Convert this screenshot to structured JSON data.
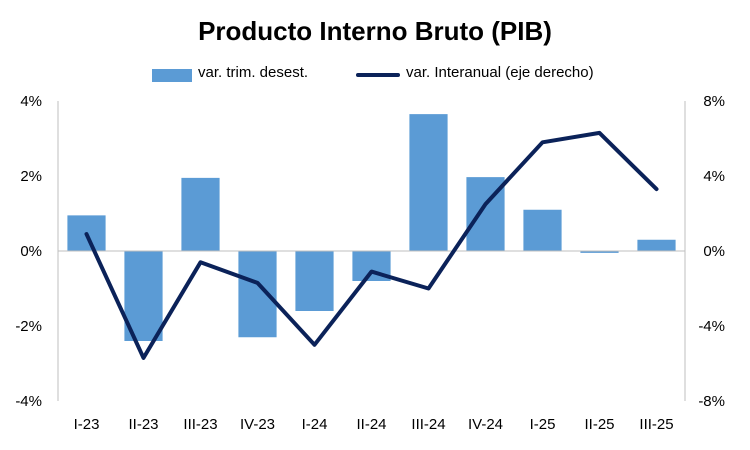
{
  "chart_data": {
    "type": "bar",
    "title": "Producto Interno Bruto (PIB)",
    "categories": [
      "I-23",
      "II-23",
      "III-23",
      "IV-23",
      "I-24",
      "II-24",
      "III-24",
      "IV-24",
      "I-25",
      "II-25",
      "III-25"
    ],
    "series": [
      {
        "name": "var. trim. desest.",
        "type": "bar",
        "axis": "left",
        "color": "#5b9bd5",
        "values": [
          0.95,
          -2.4,
          1.95,
          -2.3,
          -1.6,
          -0.8,
          3.65,
          1.97,
          1.1,
          -0.05,
          0.3
        ]
      },
      {
        "name": "var. Interanual (eje derecho)",
        "type": "line",
        "axis": "right",
        "color": "#0b2259",
        "values": [
          0.9,
          -5.7,
          -0.6,
          -1.7,
          -5.0,
          -1.1,
          -2.0,
          2.5,
          5.8,
          6.3,
          3.3
        ]
      }
    ],
    "y_left": {
      "min": -4,
      "max": 4,
      "ticks": [
        "4%",
        "2%",
        "0%",
        "-2%",
        "-4%"
      ]
    },
    "y_right": {
      "min": -8,
      "max": 8,
      "ticks": [
        "8%",
        "4%",
        "0%",
        "-4%",
        "-8%"
      ]
    },
    "grid": false,
    "legend_position": "top"
  }
}
